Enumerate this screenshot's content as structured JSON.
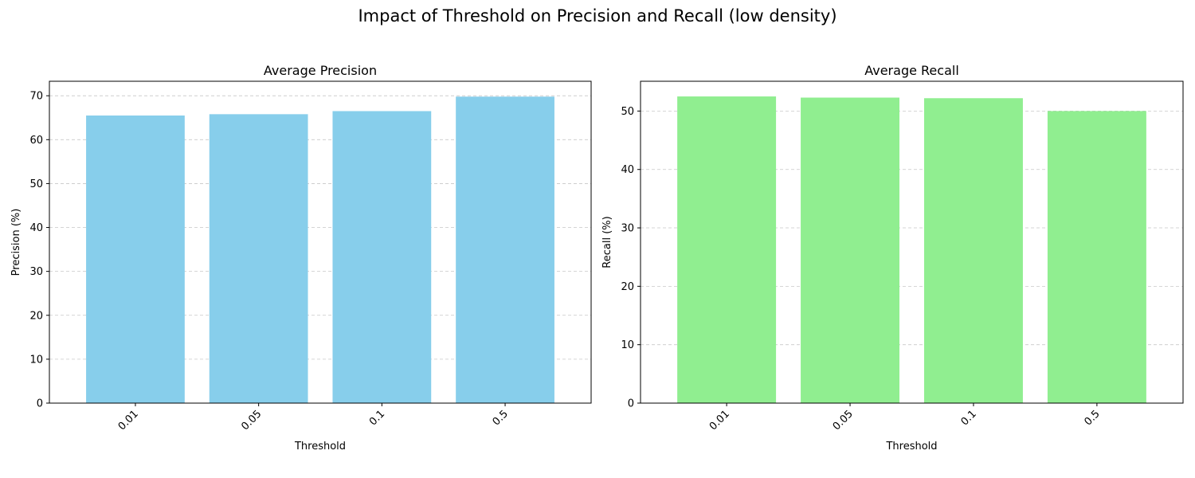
{
  "figure": {
    "suptitle": "Impact of Threshold on Precision and Recall (low density)"
  },
  "chart_data": [
    {
      "type": "bar",
      "title": "Average Precision",
      "xlabel": "Threshold",
      "ylabel": "Precision (%)",
      "categories": [
        "0.01",
        "0.05",
        "0.1",
        "0.5"
      ],
      "values": [
        65.5,
        65.8,
        66.5,
        69.8
      ],
      "ylim": [
        0,
        73.3
      ],
      "yticks": [
        0,
        10,
        20,
        30,
        40,
        50,
        60,
        70
      ],
      "color": "#87CEEB",
      "grid": "y-dashed",
      "legend": "none"
    },
    {
      "type": "bar",
      "title": "Average Recall",
      "xlabel": "Threshold",
      "ylabel": "Recall (%)",
      "categories": [
        "0.01",
        "0.05",
        "0.1",
        "0.5"
      ],
      "values": [
        52.5,
        52.3,
        52.2,
        50.0
      ],
      "ylim": [
        0,
        55.1
      ],
      "yticks": [
        0,
        10,
        20,
        30,
        40,
        50
      ],
      "color": "#90EE90",
      "grid": "y-dashed",
      "legend": "none"
    }
  ]
}
